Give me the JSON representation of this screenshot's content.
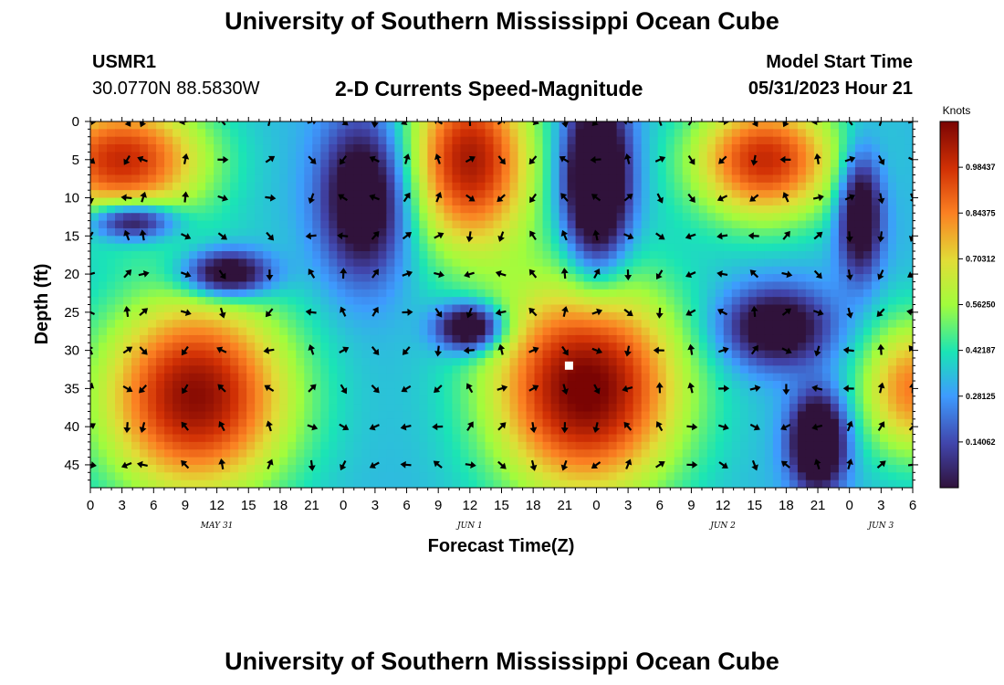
{
  "header": {
    "title": "University of Southern Mississippi Ocean Cube",
    "station_id": "USMR1",
    "coords": "30.0770N  88.5830W",
    "plot_title": "2-D Currents Speed-Magnitude",
    "model_label": "Model Start Time",
    "model_time": "05/31/2023 Hour 21"
  },
  "footer": {
    "title": "University of Southern Mississippi Ocean Cube"
  },
  "chart_data": {
    "type": "heatmap",
    "title": "2-D Currents Speed-Magnitude",
    "xlabel": "Forecast Time(Z)",
    "ylabel": "Depth (ft)",
    "x_range_hours": [
      0,
      78
    ],
    "y_range_ft": [
      0,
      48
    ],
    "x_tick_labels": [
      "0",
      "3",
      "6",
      "9",
      "12",
      "15",
      "18",
      "21",
      "0",
      "3",
      "6",
      "9",
      "12",
      "15",
      "18",
      "21",
      "0",
      "3",
      "6",
      "9",
      "12",
      "15",
      "18",
      "21",
      "0",
      "3",
      "6"
    ],
    "y_tick_labels": [
      "0",
      "5",
      "10",
      "15",
      "20",
      "25",
      "30",
      "35",
      "40",
      "45"
    ],
    "y_tick_values": [
      0,
      5,
      10,
      15,
      20,
      25,
      30,
      35,
      40,
      45
    ],
    "date_labels": [
      {
        "label": "MAY 31",
        "hour": 12
      },
      {
        "label": "JUN 1",
        "hour": 36
      },
      {
        "label": "JUN 2",
        "hour": 60
      },
      {
        "label": "JUN 3",
        "hour": 75
      }
    ],
    "colorbar": {
      "title": "Knots",
      "range": [
        0.0,
        1.125
      ],
      "tick_values": [
        0.98437,
        0.84375,
        0.70312,
        0.5625,
        0.42187,
        0.28125,
        0.14062
      ],
      "tick_labels": [
        "0.98437",
        "0.84375",
        "0.70312",
        "0.56250",
        "0.42187",
        "0.28125",
        "0.14062"
      ]
    },
    "speed_features": [
      {
        "hour": 3,
        "depth": 5,
        "rx": 8,
        "ry": 8,
        "knots": 1.0
      },
      {
        "hour": 10,
        "depth": 36,
        "rx": 9,
        "ry": 13,
        "knots": 1.1
      },
      {
        "hour": 36,
        "depth": 5,
        "rx": 6,
        "ry": 12,
        "knots": 1.05
      },
      {
        "hour": 47,
        "depth": 35,
        "rx": 9,
        "ry": 14,
        "knots": 1.15
      },
      {
        "hour": 64,
        "depth": 5,
        "rx": 7,
        "ry": 8,
        "knots": 1.0
      },
      {
        "hour": 78,
        "depth": 35,
        "rx": 5,
        "ry": 9,
        "knots": 0.85
      },
      {
        "hour": 13,
        "depth": 20,
        "rx": 4,
        "ry": 3,
        "knots": -0.25
      },
      {
        "hour": 4,
        "depth": 13,
        "rx": 4,
        "ry": 2.5,
        "knots": -0.2
      },
      {
        "hour": 36,
        "depth": 27,
        "rx": 3,
        "ry": 3,
        "knots": -0.3
      },
      {
        "hour": 48,
        "depth": 8,
        "rx": 3,
        "ry": 11,
        "knots": -0.4
      },
      {
        "hour": 69,
        "depth": 42,
        "rx": 2.5,
        "ry": 6,
        "knots": -0.35
      },
      {
        "hour": 73,
        "depth": 12,
        "rx": 2,
        "ry": 8,
        "knots": -0.2
      },
      {
        "hour": 26,
        "depth": 10,
        "rx": 4,
        "ry": 10,
        "knots": -0.2
      },
      {
        "hour": 65,
        "depth": 27,
        "rx": 5,
        "ry": 5,
        "knots": -0.15
      }
    ],
    "arrow_field": {
      "hours": [
        0,
        3.5,
        5,
        9,
        12.5,
        17,
        21,
        24,
        27,
        30,
        33,
        36,
        39,
        42,
        45,
        48,
        51,
        54,
        57,
        60,
        63,
        66,
        69,
        72,
        75,
        78
      ],
      "depths": [
        0,
        5,
        10,
        15,
        20,
        25,
        30,
        35,
        40,
        45
      ]
    },
    "marker": {
      "hour": 45.4,
      "depth": 32,
      "label": "current-time"
    }
  }
}
